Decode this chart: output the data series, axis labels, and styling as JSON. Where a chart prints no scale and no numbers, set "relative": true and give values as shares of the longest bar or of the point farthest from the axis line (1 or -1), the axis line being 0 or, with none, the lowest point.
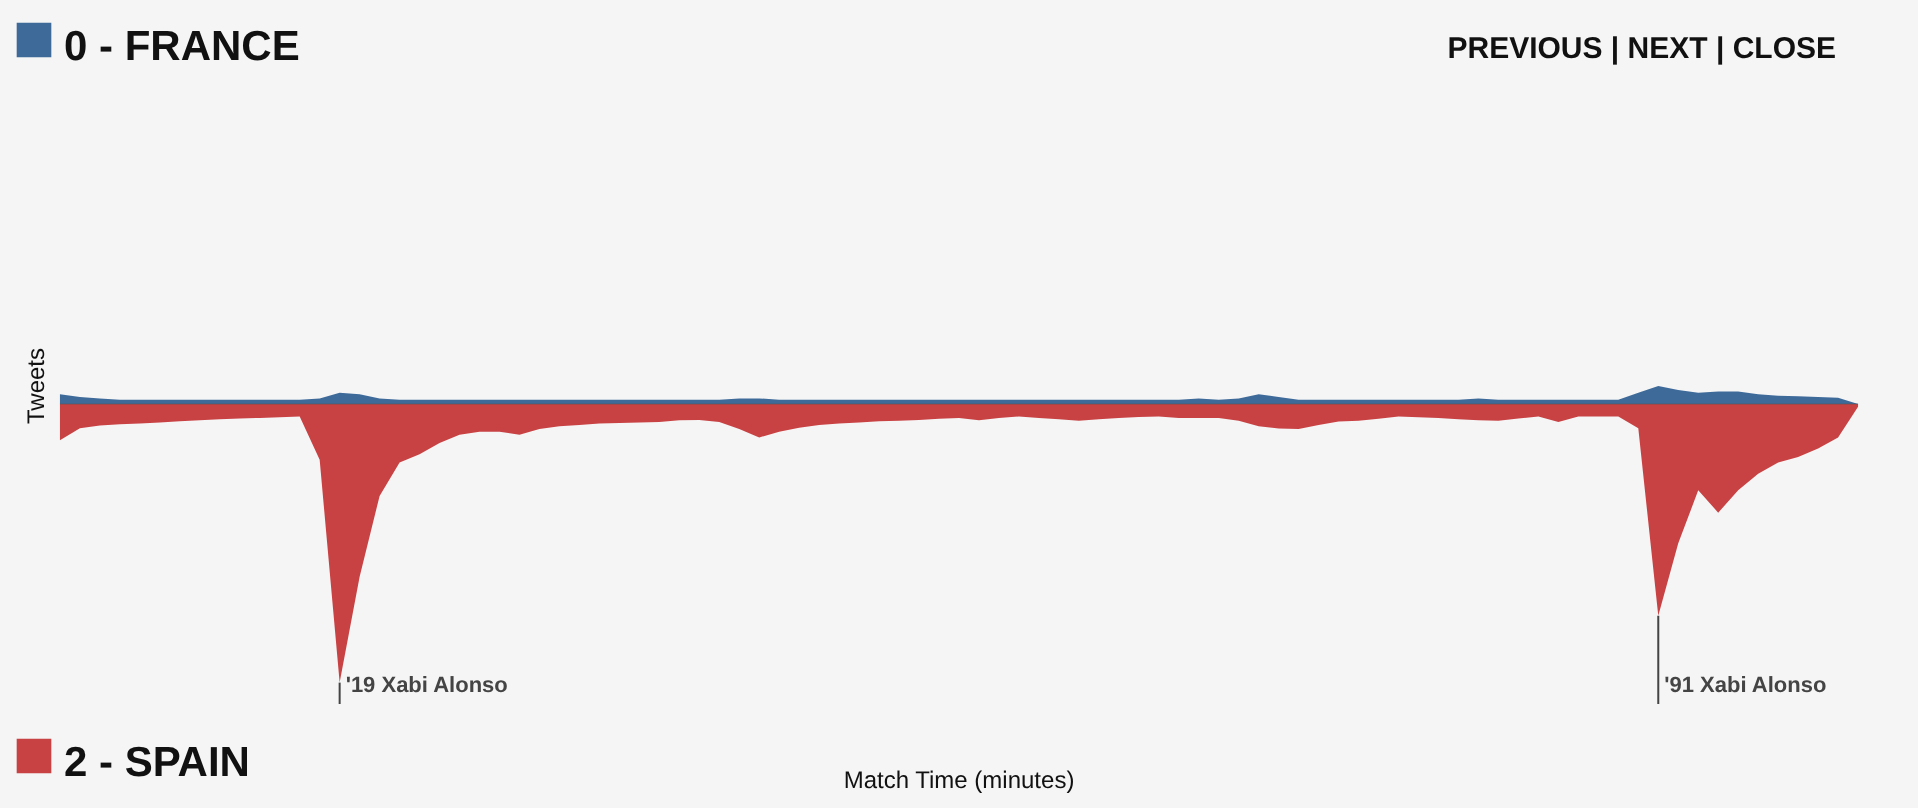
{
  "chart_data": {
    "type": "area",
    "relative": true,
    "legend": "left",
    "ylabel": "Tweets",
    "xlabel": "Match Time (minutes)",
    "categories": [
      null,
      null,
      null,
      null,
      null,
      null,
      null,
      null,
      null,
      null,
      null,
      null,
      null,
      null,
      null,
      null,
      null,
      null,
      null,
      null,
      null,
      null,
      null,
      null,
      null,
      null,
      null,
      null,
      null,
      null,
      null,
      null,
      null,
      null,
      null,
      null,
      null,
      null,
      null,
      null,
      null,
      null,
      null,
      null,
      null,
      null,
      null,
      null,
      null,
      null,
      null,
      null,
      null,
      null,
      null,
      null,
      null,
      null,
      null,
      null,
      null,
      null,
      null,
      null,
      null,
      null,
      null,
      null,
      null,
      null,
      null,
      null,
      null,
      null,
      null,
      null,
      null,
      null,
      null,
      null,
      null,
      null,
      null,
      null,
      null,
      null,
      null,
      null,
      null,
      null,
      null
    ],
    "series": [
      {
        "name": "0 - FRANCE",
        "color": "#3e6a9a",
        "values": [
          0.035,
          0.025,
          0.02,
          0.015,
          0.015,
          0.015,
          0.015,
          0.015,
          0.015,
          0.015,
          0.015,
          0.015,
          0.015,
          0.02,
          0.04,
          0.035,
          0.02,
          0.015,
          0.015,
          0.015,
          0.015,
          0.015,
          0.015,
          0.015,
          0.015,
          0.015,
          0.015,
          0.015,
          0.015,
          0.015,
          0.015,
          0.015,
          0.015,
          0.015,
          0.02,
          0.02,
          0.015,
          0.015,
          0.015,
          0.015,
          0.015,
          0.015,
          0.015,
          0.015,
          0.015,
          0.015,
          0.015,
          0.015,
          0.015,
          0.015,
          0.015,
          0.015,
          0.015,
          0.015,
          0.015,
          0.015,
          0.015,
          0.02,
          0.015,
          0.02,
          0.035,
          0.025,
          0.015,
          0.015,
          0.015,
          0.015,
          0.015,
          0.015,
          0.015,
          0.015,
          0.015,
          0.02,
          0.015,
          0.015,
          0.015,
          0.015,
          0.015,
          0.015,
          0.015,
          0.04,
          0.065,
          0.05,
          0.04,
          0.045,
          0.045,
          0.035,
          0.03,
          0.028,
          0.025,
          0.022,
          0.0
        ]
      },
      {
        "name": "2 - SPAIN",
        "color": "#c84244",
        "values": [
          -0.13,
          -0.087,
          -0.077,
          -0.073,
          -0.07,
          -0.066,
          -0.062,
          -0.058,
          -0.055,
          -0.052,
          -0.05,
          -0.048,
          -0.045,
          -0.2,
          -1,
          -0.62,
          -0.33,
          -0.21,
          -0.18,
          -0.14,
          -0.11,
          -0.1,
          -0.1,
          -0.11,
          -0.09,
          -0.08,
          -0.075,
          -0.07,
          -0.068,
          -0.066,
          -0.065,
          -0.058,
          -0.057,
          -0.065,
          -0.09,
          -0.12,
          -0.1,
          -0.085,
          -0.075,
          -0.07,
          -0.066,
          -0.062,
          -0.06,
          -0.057,
          -0.053,
          -0.05,
          -0.058,
          -0.05,
          -0.045,
          -0.05,
          -0.055,
          -0.06,
          -0.055,
          -0.05,
          -0.047,
          -0.045,
          -0.05,
          -0.05,
          -0.05,
          -0.06,
          -0.08,
          -0.088,
          -0.09,
          -0.075,
          -0.063,
          -0.06,
          -0.053,
          -0.045,
          -0.048,
          -0.05,
          -0.055,
          -0.058,
          -0.06,
          -0.052,
          -0.045,
          -0.065,
          -0.045,
          -0.045,
          -0.045,
          -0.087,
          -0.76,
          -0.5,
          -0.31,
          -0.39,
          -0.31,
          -0.25,
          -0.21,
          -0.19,
          -0.16,
          -0.12,
          -0.01
        ]
      }
    ],
    "annotations": [
      "'19 Xabi Alonso",
      "'91 Xabi Alonso",
      "PREVIOUS | NEXT | CLOSE"
    ]
  }
}
